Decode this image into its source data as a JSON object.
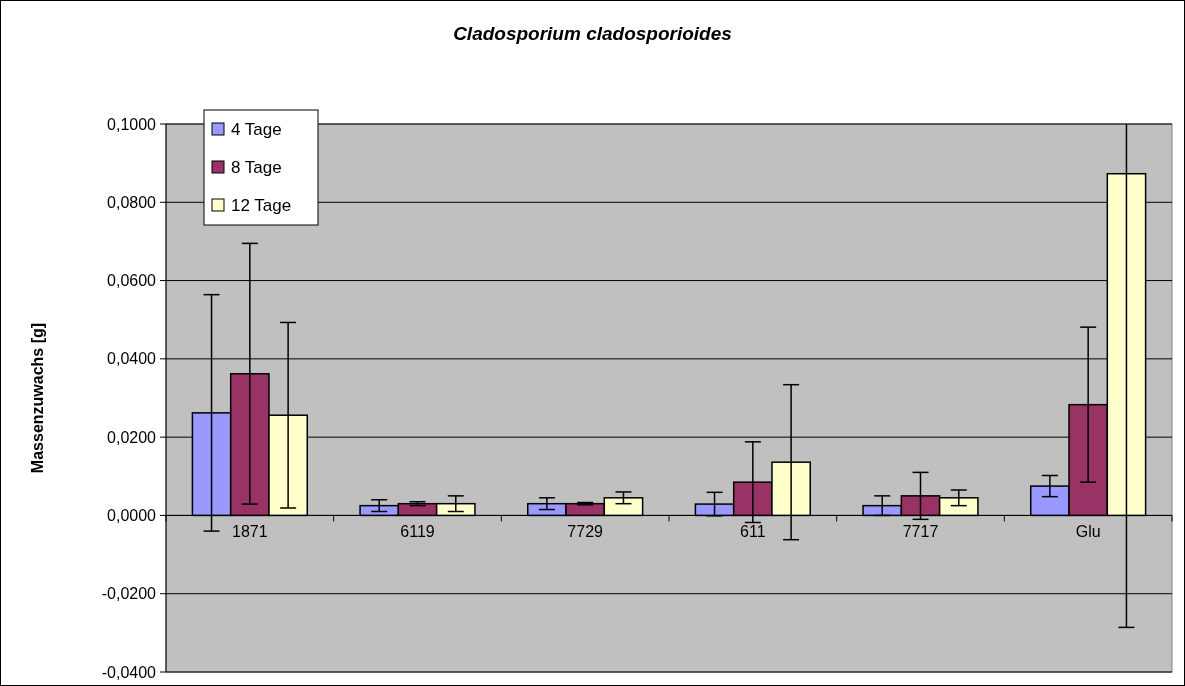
{
  "chart_data": {
    "type": "bar",
    "title": "Cladosporium cladosporioides",
    "ylabel": "Massenzuwachs [g]",
    "categories": [
      "1871",
      "6119",
      "7729",
      "611",
      "7717",
      "Glu"
    ],
    "series": [
      {
        "name": "4 Tage",
        "color": "#9999ff",
        "values": [
          0.0262,
          0.0025,
          0.003,
          0.0029,
          0.0025,
          0.0075
        ],
        "errors": [
          0.0302,
          0.0015,
          0.0015,
          0.003,
          0.0025,
          0.0027
        ]
      },
      {
        "name": "8 Tage",
        "color": "#993366",
        "values": [
          0.0362,
          0.003,
          0.003,
          0.0085,
          0.005,
          0.0283
        ],
        "errors": [
          0.0333,
          0.0005,
          0.0003,
          0.0103,
          0.006,
          0.0198
        ]
      },
      {
        "name": "12 Tage",
        "color": "#ffffcc",
        "values": [
          0.0256,
          0.003,
          0.0045,
          0.0136,
          0.0045,
          0.0873
        ],
        "errors": [
          0.0237,
          0.002,
          0.0015,
          0.0198,
          0.002,
          [
            -0.0286,
            0.1
          ]
        ]
      }
    ],
    "ylim": [
      -0.04,
      0.1
    ],
    "yticks": [
      {
        "value": -0.04,
        "label": "-0,0400"
      },
      {
        "value": -0.02,
        "label": "-0,0200"
      },
      {
        "value": 0,
        "label": "0,0000"
      },
      {
        "value": 0.02,
        "label": "0,0200"
      },
      {
        "value": 0.04,
        "label": "0,0400"
      },
      {
        "value": 0.06,
        "label": "0,0600"
      },
      {
        "value": 0.08,
        "label": "0,0800"
      },
      {
        "value": 0.1,
        "label": "0,1000"
      }
    ],
    "grid": "y",
    "legend": "top left"
  }
}
